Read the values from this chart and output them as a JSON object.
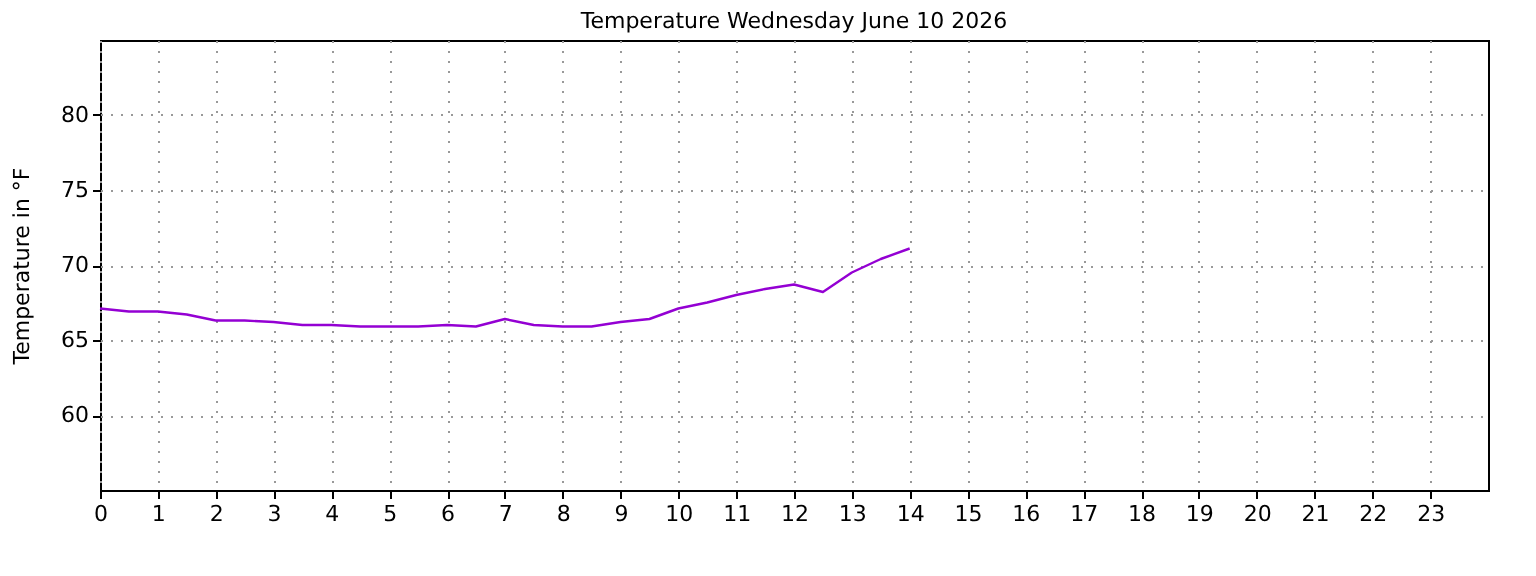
{
  "chart_data": {
    "type": "line",
    "title": "Temperature Wednesday June 10 2026",
    "ylabel": "Temperature in °F",
    "x": [
      0,
      0.5,
      1,
      1.5,
      2,
      2.5,
      3,
      3.5,
      4,
      4.5,
      5,
      5.5,
      6,
      6.5,
      7,
      7.5,
      8,
      8.5,
      9,
      9.5,
      10,
      10.5,
      11,
      11.5,
      12,
      12.5,
      13,
      13.5,
      14
    ],
    "series": [
      {
        "color": "#9400d3",
        "values": [
          67.1,
          66.9,
          66.9,
          66.7,
          66.3,
          66.3,
          66.2,
          66.0,
          66.0,
          65.9,
          65.9,
          65.9,
          66.0,
          65.9,
          66.4,
          66.0,
          65.9,
          65.9,
          66.2,
          66.4,
          67.1,
          67.5,
          68.0,
          68.4,
          68.7,
          68.2,
          69.5,
          70.4,
          71.1
        ]
      }
    ],
    "xlim": [
      0,
      24
    ],
    "xticks": [
      0,
      1,
      2,
      3,
      4,
      5,
      6,
      7,
      8,
      9,
      10,
      11,
      12,
      13,
      14,
      15,
      16,
      17,
      18,
      19,
      20,
      21,
      22,
      23
    ],
    "ylim": [
      55,
      85
    ],
    "yticks": [
      60,
      65,
      70,
      75,
      80
    ],
    "grid": true,
    "line_style": "solid",
    "marker": "none"
  }
}
